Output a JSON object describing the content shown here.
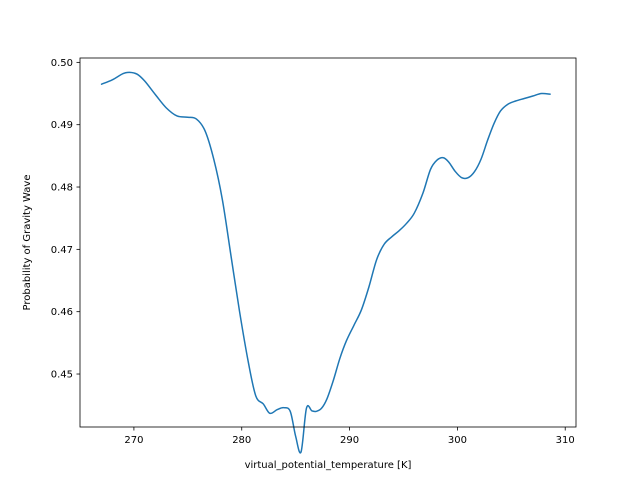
{
  "chart_data": {
    "type": "line",
    "title": "",
    "xlabel": "virtual_potential_temperature [K]",
    "ylabel": "Probability of Gravity Wave",
    "xlim": [
      265.0,
      311.0
    ],
    "ylim": [
      0.4415,
      0.5007
    ],
    "grid": false,
    "x_ticks": [
      270,
      280,
      290,
      300,
      310
    ],
    "y_ticks": [
      0.45,
      0.46,
      0.47,
      0.48,
      0.49,
      0.5
    ],
    "x_tick_labels": [
      "270",
      "280",
      "290",
      "300",
      "310"
    ],
    "y_tick_labels": [
      "0.45",
      "0.46",
      "0.47",
      "0.48",
      "0.49",
      "0.50"
    ],
    "series": [
      {
        "color": "#1f77b4",
        "x": [
          267.0,
          268.0,
          269.0,
          269.6,
          270.3,
          271.0,
          272.0,
          273.0,
          274.0,
          275.0,
          275.8,
          276.6,
          277.4,
          278.2,
          279.0,
          279.8,
          280.6,
          281.3,
          282.0,
          282.6,
          283.3,
          283.9,
          284.5,
          285.0,
          285.5,
          286.0,
          286.5,
          286.9,
          287.4,
          287.9,
          288.5,
          289.1,
          289.7,
          290.4,
          291.1,
          291.8,
          292.5,
          293.2,
          293.9,
          294.6,
          295.3,
          296.0,
          296.8,
          297.5,
          298.1,
          298.7,
          299.2,
          299.8,
          300.4,
          301.0,
          301.6,
          302.2,
          302.8,
          303.4,
          304.0,
          304.7,
          305.4,
          306.2,
          307.0,
          307.8,
          308.6
        ],
        "y": [
          0.4965,
          0.4972,
          0.4982,
          0.4984,
          0.4981,
          0.497,
          0.4948,
          0.4927,
          0.4914,
          0.4912,
          0.4909,
          0.489,
          0.4845,
          0.478,
          0.469,
          0.46,
          0.452,
          0.4465,
          0.4452,
          0.4437,
          0.4443,
          0.4446,
          0.444,
          0.44,
          0.4375,
          0.4445,
          0.4441,
          0.444,
          0.4445,
          0.446,
          0.449,
          0.4525,
          0.4553,
          0.4578,
          0.4603,
          0.464,
          0.4683,
          0.4708,
          0.472,
          0.473,
          0.4742,
          0.4758,
          0.479,
          0.4828,
          0.4843,
          0.4847,
          0.484,
          0.4825,
          0.4815,
          0.4815,
          0.4825,
          0.4845,
          0.4875,
          0.4902,
          0.4922,
          0.4933,
          0.4938,
          0.4942,
          0.4946,
          0.495,
          0.4949
        ]
      }
    ]
  }
}
